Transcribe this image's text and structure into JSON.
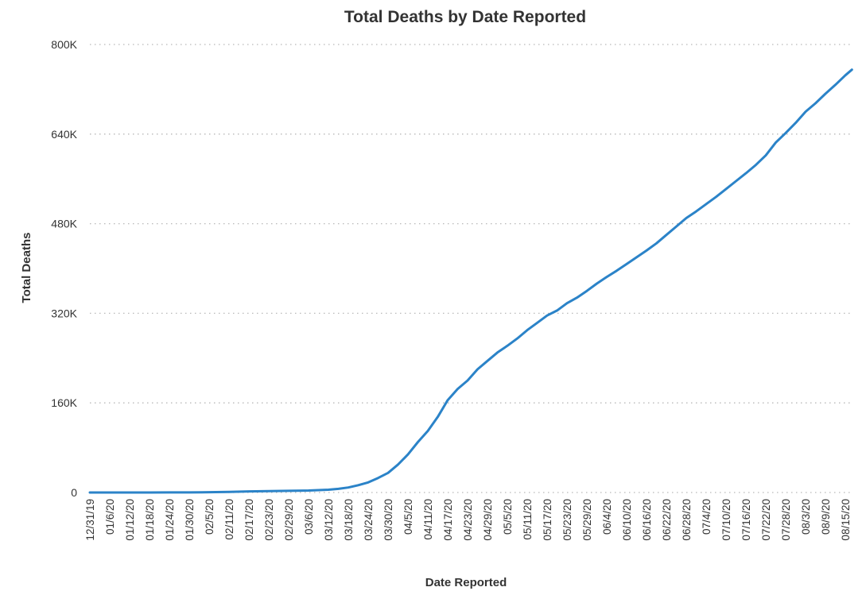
{
  "chart_data": {
    "type": "line",
    "title": "Total Deaths by Date Reported",
    "xlabel": "Date Reported",
    "ylabel": "Total Deaths",
    "ylim": [
      0,
      800000
    ],
    "yticks": [
      {
        "value": 0,
        "label": "0"
      },
      {
        "value": 160000,
        "label": "160K"
      },
      {
        "value": 320000,
        "label": "320K"
      },
      {
        "value": 480000,
        "label": "480K"
      },
      {
        "value": 640000,
        "label": "640K"
      },
      {
        "value": 800000,
        "label": "800K"
      }
    ],
    "xticks": [
      "12/31/19",
      "01/6/20",
      "01/12/20",
      "01/18/20",
      "01/24/20",
      "01/30/20",
      "02/5/20",
      "02/11/20",
      "02/17/20",
      "02/23/20",
      "02/29/20",
      "03/6/20",
      "03/12/20",
      "03/18/20",
      "03/24/20",
      "03/30/20",
      "04/5/20",
      "04/11/20",
      "04/17/20",
      "04/23/20",
      "04/29/20",
      "05/5/20",
      "05/11/20",
      "05/17/20",
      "05/23/20",
      "05/29/20",
      "06/4/20",
      "06/10/20",
      "06/16/20",
      "06/22/20",
      "06/28/20",
      "07/4/20",
      "07/10/20",
      "07/16/20",
      "07/22/20",
      "07/28/20",
      "08/3/20",
      "08/9/20",
      "08/15/20"
    ],
    "grid": true,
    "legend": "none",
    "color": "#2b83c8",
    "series": [
      {
        "x": [
          "12/31/19",
          "01/6/20",
          "01/12/20",
          "01/18/20",
          "01/24/20",
          "01/30/20",
          "02/5/20",
          "02/11/20",
          "02/17/20",
          "02/23/20",
          "02/29/20",
          "03/6/20",
          "03/12/20",
          "03/15/20",
          "03/18/20",
          "03/21/20",
          "03/24/20",
          "03/27/20",
          "03/30/20",
          "04/2/20",
          "04/5/20",
          "04/8/20",
          "04/11/20",
          "04/14/20",
          "04/17/20",
          "04/20/20",
          "04/23/20",
          "04/26/20",
          "04/29/20",
          "05/2/20",
          "05/5/20",
          "05/8/20",
          "05/11/20",
          "05/14/20",
          "05/17/20",
          "05/20/20",
          "05/23/20",
          "05/26/20",
          "05/29/20",
          "06/1/20",
          "06/4/20",
          "06/7/20",
          "06/10/20",
          "06/13/20",
          "06/16/20",
          "06/19/20",
          "06/22/20",
          "06/25/20",
          "06/28/20",
          "07/1/20",
          "07/4/20",
          "07/7/20",
          "07/10/20",
          "07/13/20",
          "07/16/20",
          "07/19/20",
          "07/22/20",
          "07/25/20",
          "07/28/20",
          "07/31/20",
          "08/3/20",
          "08/6/20",
          "08/9/20",
          "08/12/20",
          "08/15/20",
          "08/17/20"
        ],
        "values": [
          0,
          0,
          0,
          0,
          100,
          200,
          500,
          1000,
          2000,
          2500,
          3000,
          3500,
          5000,
          6500,
          9000,
          13000,
          18000,
          26000,
          35000,
          50000,
          68000,
          90000,
          110000,
          135000,
          165000,
          185000,
          200000,
          220000,
          235000,
          250000,
          262000,
          275000,
          290000,
          303000,
          316000,
          325000,
          338000,
          348000,
          360000,
          373000,
          385000,
          396000,
          408000,
          420000,
          432000,
          445000,
          460000,
          475000,
          490000,
          502000,
          515000,
          528000,
          542000,
          556000,
          570000,
          585000,
          602000,
          625000,
          642000,
          660000,
          680000,
          695000,
          712000,
          728000,
          745000,
          755000
        ]
      }
    ]
  }
}
